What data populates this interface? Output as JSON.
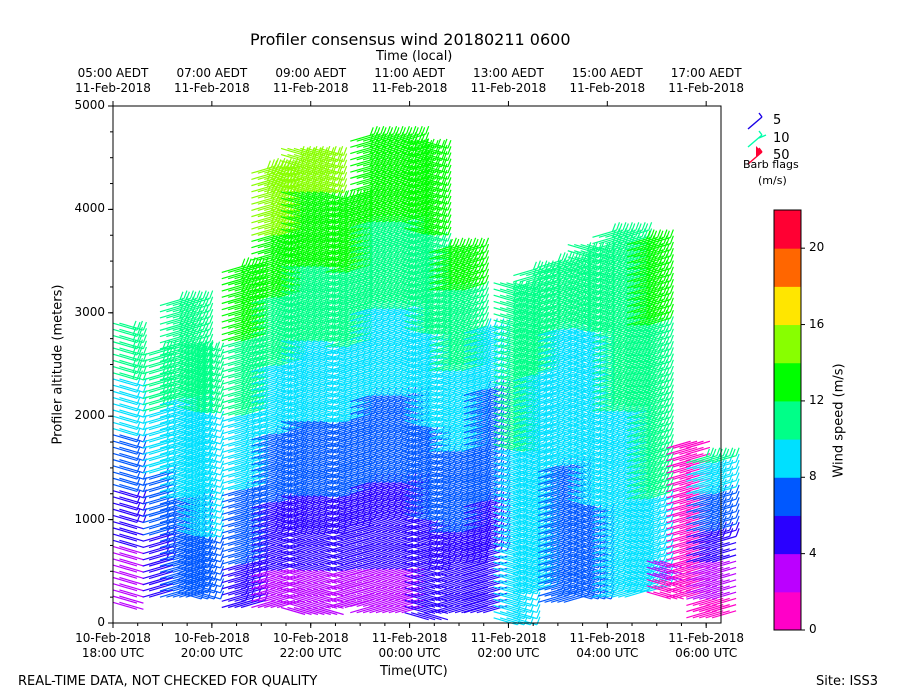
{
  "chart_data": {
    "type": "wind-barb profile",
    "title": "Profiler consensus wind 20180211 0600",
    "top_axis_label": "Time (local)",
    "xlabel": "Time(UTC)",
    "ylabel": "Profiler altitude (meters)",
    "ylim": [
      0,
      5000
    ],
    "xlim_hours_from_1800utc": [
      0,
      12.3
    ],
    "y_ticks": [
      "0",
      "1000",
      "2000",
      "3000",
      "4000",
      "5000"
    ],
    "bottom_ticks": [
      {
        "hour": 0,
        "line1": "10-Feb-2018",
        "line2": "18:00 UTC"
      },
      {
        "hour": 2,
        "line1": "10-Feb-2018",
        "line2": "20:00 UTC"
      },
      {
        "hour": 4,
        "line1": "10-Feb-2018",
        "line2": "22:00 UTC"
      },
      {
        "hour": 6,
        "line1": "11-Feb-2018",
        "line2": "00:00 UTC"
      },
      {
        "hour": 8,
        "line1": "11-Feb-2018",
        "line2": "02:00 UTC"
      },
      {
        "hour": 10,
        "line1": "11-Feb-2018",
        "line2": "04:00 UTC"
      },
      {
        "hour": 12,
        "line1": "11-Feb-2018",
        "line2": "06:00 UTC"
      }
    ],
    "top_ticks": [
      {
        "hour": 0,
        "line1": "05:00 AEDT",
        "line2": "11-Feb-2018"
      },
      {
        "hour": 2,
        "line1": "07:00 AEDT",
        "line2": "11-Feb-2018"
      },
      {
        "hour": 4,
        "line1": "09:00 AEDT",
        "line2": "11-Feb-2018"
      },
      {
        "hour": 6,
        "line1": "11:00 AEDT",
        "line2": "11-Feb-2018"
      },
      {
        "hour": 8,
        "line1": "13:00 AEDT",
        "line2": "11-Feb-2018"
      },
      {
        "hour": 10,
        "line1": "15:00 AEDT",
        "line2": "11-Feb-2018"
      },
      {
        "hour": 12,
        "line1": "17:00 AEDT",
        "line2": "11-Feb-2018"
      }
    ],
    "colorbar": {
      "label": "Wind speed (m/s)",
      "range": [
        0,
        22
      ],
      "tick_values": [
        0,
        4,
        8,
        12,
        16,
        20
      ],
      "tick_labels": [
        "0",
        "4",
        "8",
        "12",
        "16",
        "20"
      ],
      "colors": [
        "#ff00c8",
        "#bb00ff",
        "#2a00ff",
        "#0058ff",
        "#00e0ff",
        "#00ff88",
        "#00ff00",
        "#88ff00",
        "#ffe600",
        "#ff6600",
        "#ff0033"
      ]
    },
    "legend": {
      "entries": [
        {
          "label": "5",
          "color": "#1a00e6"
        },
        {
          "label": "10",
          "color": "#00ffaa"
        },
        {
          "label": "50",
          "color": "#ff0033"
        }
      ],
      "caption_line1": "Barb flags",
      "caption_line2": "(m/s)",
      "placement": "upper-right outside"
    },
    "segments": [
      {
        "t0": 0.0,
        "t1": 0.2,
        "alt_lo": 200,
        "alt_hi": 2950,
        "speed_lo": 2,
        "speed_hi": 12
      },
      {
        "t0": 0.6,
        "t1": 0.8,
        "alt_lo": 250,
        "alt_hi": 2600,
        "speed_lo": 4,
        "speed_hi": 12
      },
      {
        "t0": 0.95,
        "t1": 1.5,
        "alt_lo": 250,
        "alt_hi": 3100,
        "speed_lo": 6,
        "speed_hi": 12
      },
      {
        "t0": 1.3,
        "t1": 1.8,
        "alt_lo": 300,
        "alt_hi": 2700,
        "speed_lo": 7,
        "speed_hi": 11
      },
      {
        "t0": 2.2,
        "t1": 2.7,
        "alt_lo": 150,
        "alt_hi": 3400,
        "speed_lo": 5,
        "speed_hi": 14
      },
      {
        "t0": 2.8,
        "t1": 3.4,
        "alt_lo": 150,
        "alt_hi": 4400,
        "speed_lo": 3,
        "speed_hi": 16
      },
      {
        "t0": 3.4,
        "t1": 4.3,
        "alt_lo": 150,
        "alt_hi": 4600,
        "speed_lo": 3,
        "speed_hi": 15
      },
      {
        "t0": 4.3,
        "t1": 4.8,
        "alt_lo": 150,
        "alt_hi": 4100,
        "speed_lo": 3,
        "speed_hi": 14
      },
      {
        "t0": 4.8,
        "t1": 5.9,
        "alt_lo": 100,
        "alt_hi": 4700,
        "speed_lo": 3,
        "speed_hi": 14
      },
      {
        "t0": 5.9,
        "t1": 6.4,
        "alt_lo": 100,
        "alt_hi": 4700,
        "speed_lo": 4,
        "speed_hi": 14
      },
      {
        "t0": 6.4,
        "t1": 7.1,
        "alt_lo": 100,
        "alt_hi": 3600,
        "speed_lo": 4,
        "speed_hi": 13
      },
      {
        "t0": 7.1,
        "t1": 7.6,
        "alt_lo": 100,
        "alt_hi": 2800,
        "speed_lo": 4,
        "speed_hi": 9
      },
      {
        "t0": 7.7,
        "t1": 8.1,
        "alt_lo": 50,
        "alt_hi": 3300,
        "speed_lo": 8,
        "speed_hi": 12
      },
      {
        "t0": 8.1,
        "t1": 8.6,
        "alt_lo": 300,
        "alt_hi": 3400,
        "speed_lo": 8,
        "speed_hi": 11
      },
      {
        "t0": 8.6,
        "t1": 9.2,
        "alt_lo": 200,
        "alt_hi": 3450,
        "speed_lo": 6,
        "speed_hi": 11
      },
      {
        "t0": 9.2,
        "t1": 9.7,
        "alt_lo": 300,
        "alt_hi": 3700,
        "speed_lo": 7,
        "speed_hi": 11
      },
      {
        "t0": 9.7,
        "t1": 10.4,
        "alt_lo": 250,
        "alt_hi": 3750,
        "speed_lo": 8,
        "speed_hi": 12
      },
      {
        "t0": 10.4,
        "t1": 10.8,
        "alt_lo": 300,
        "alt_hi": 3700,
        "speed_lo": 9,
        "speed_hi": 13
      },
      {
        "t0": 10.8,
        "t1": 11.1,
        "alt_lo": 300,
        "alt_hi": 600,
        "speed_lo": 1,
        "speed_hi": 3
      },
      {
        "t0": 11.2,
        "t1": 11.6,
        "alt_lo": 250,
        "alt_hi": 1700,
        "speed_lo": 1,
        "speed_hi": 2
      },
      {
        "t0": 11.6,
        "t1": 12.2,
        "alt_lo": 50,
        "alt_hi": 1550,
        "speed_lo": 1,
        "speed_hi": 10
      }
    ]
  },
  "footer": {
    "left_note": "REAL-TIME DATA, NOT CHECKED FOR QUALITY",
    "site": "Site: ISS3"
  }
}
